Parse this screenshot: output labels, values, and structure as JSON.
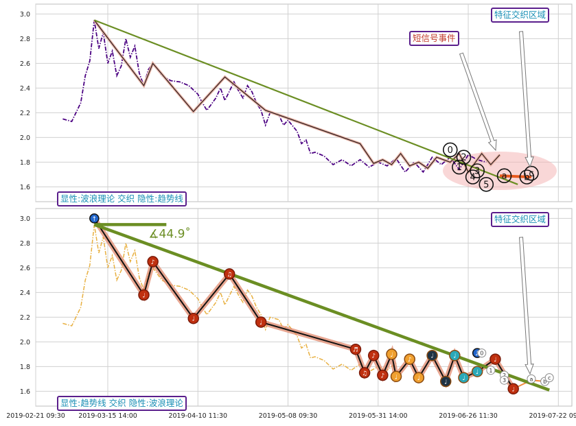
{
  "chart_data": [
    {
      "type": "line",
      "panel": "top",
      "ylim": [
        1.48,
        3.08
      ],
      "yticks": [
        "3.0",
        "2.8",
        "2.6",
        "2.4",
        "2.2",
        "2.0",
        "1.8",
        "1.6"
      ],
      "grid": true,
      "series": [
        {
          "style": "dash-dot",
          "color": "#4b0082",
          "values": [
            [
              0,
              2.15
            ],
            [
              2,
              2.13
            ],
            [
              4,
              2.28
            ],
            [
              5,
              2.5
            ],
            [
              6,
              2.62
            ],
            [
              7,
              2.95
            ],
            [
              8,
              2.72
            ],
            [
              9,
              2.85
            ],
            [
              10,
              2.6
            ],
            [
              11,
              2.7
            ],
            [
              12,
              2.5
            ],
            [
              13,
              2.58
            ],
            [
              14,
              2.8
            ],
            [
              15,
              2.65
            ],
            [
              16,
              2.74
            ],
            [
              17,
              2.52
            ],
            [
              18,
              2.42
            ],
            [
              19,
              2.55
            ],
            [
              20,
              2.6
            ],
            [
              22,
              2.5
            ],
            [
              24,
              2.46
            ],
            [
              26,
              2.45
            ],
            [
              28,
              2.42
            ],
            [
              30,
              2.35
            ],
            [
              31,
              2.28
            ],
            [
              32,
              2.22
            ],
            [
              34,
              2.32
            ],
            [
              35,
              2.4
            ],
            [
              36,
              2.3
            ],
            [
              38,
              2.45
            ],
            [
              39,
              2.38
            ],
            [
              40,
              2.32
            ],
            [
              41,
              2.42
            ],
            [
              42,
              2.37
            ],
            [
              43,
              2.28
            ],
            [
              44,
              2.22
            ],
            [
              45,
              2.1
            ],
            [
              46,
              2.2
            ],
            [
              48,
              2.18
            ],
            [
              49,
              2.1
            ],
            [
              50,
              2.14
            ],
            [
              52,
              2.05
            ],
            [
              53,
              1.95
            ],
            [
              54,
              1.98
            ],
            [
              55,
              1.87
            ],
            [
              56,
              1.88
            ],
            [
              58,
              1.85
            ],
            [
              60,
              1.78
            ],
            [
              62,
              1.82
            ],
            [
              64,
              1.77
            ],
            [
              66,
              1.82
            ],
            [
              68,
              1.76
            ],
            [
              70,
              1.8
            ],
            [
              72,
              1.77
            ],
            [
              74,
              1.83
            ],
            [
              76,
              1.72
            ],
            [
              78,
              1.8
            ],
            [
              80,
              1.72
            ],
            [
              82,
              1.84
            ],
            [
              84,
              1.78
            ],
            [
              86,
              1.84
            ],
            [
              88,
              1.74
            ],
            [
              90,
              1.86
            ],
            [
              92,
              1.82
            ],
            [
              94,
              1.8
            ]
          ]
        },
        {
          "style": "trend",
          "color": "#6b8e23",
          "values": [
            [
              7,
              2.95
            ],
            [
              101,
              1.62
            ]
          ]
        },
        {
          "style": "wave",
          "color": "#2b1b1b",
          "values": [
            [
              7,
              2.95
            ],
            [
              18,
              2.42
            ],
            [
              20,
              2.6
            ],
            [
              29,
              2.21
            ],
            [
              36,
              2.49
            ],
            [
              45,
              2.22
            ],
            [
              66,
              1.95
            ],
            [
              69,
              1.79
            ],
            [
              71,
              1.82
            ],
            [
              73,
              1.78
            ],
            [
              75,
              1.87
            ],
            [
              77,
              1.77
            ],
            [
              79,
              1.8
            ],
            [
              81,
              1.75
            ],
            [
              83,
              1.84
            ],
            [
              86,
              1.8
            ],
            [
              88,
              1.87
            ],
            [
              90,
              1.72
            ],
            [
              93,
              1.87
            ],
            [
              95,
              1.78
            ],
            [
              97,
              1.86
            ]
          ]
        }
      ],
      "points": [
        {
          "label": "0",
          "x": 86,
          "y": 1.9
        },
        {
          "label": "1",
          "x": 88,
          "y": 1.76
        },
        {
          "label": "2",
          "x": 89,
          "y": 1.84
        },
        {
          "label": "3",
          "x": 92,
          "y": 1.73
        },
        {
          "label": "4",
          "x": 91,
          "y": 1.68
        },
        {
          "label": "5",
          "x": 94,
          "y": 1.62
        },
        {
          "label": "a",
          "x": 98,
          "y": 1.69
        },
        {
          "label": "b",
          "x": 103,
          "y": 1.68
        },
        {
          "label": "c",
          "x": 104,
          "y": 1.71
        }
      ],
      "annotations": [
        {
          "text": "短信号事件",
          "color": "#c0392b"
        },
        {
          "text": "特征交织区域",
          "color": "#1a8fb5"
        }
      ],
      "legend_text": "显性:波浪理论 交织 隐性:趋势线"
    },
    {
      "type": "line",
      "panel": "bottom",
      "ylim": [
        1.48,
        3.08
      ],
      "yticks": [
        "3.0",
        "2.8",
        "2.6",
        "2.4",
        "2.2",
        "2.0",
        "1.8",
        "1.6"
      ],
      "grid": true,
      "xtick_labels": [
        "2019-02-21 09:30",
        "2019-03-15 14:00",
        "2019-04-10 11:30",
        "2019-05-08 09:30",
        "2019-05-31 14:00",
        "2019-06-26 11:30",
        "2019-07-22 09:30"
      ],
      "angle_label": "∡44.9˚",
      "annotations": [
        {
          "text": "特征交织区域",
          "color": "#1a8fb5"
        }
      ],
      "legend_text": "显性:趋势线 交织 隐性:波浪理论",
      "pivots": [
        {
          "x": 7,
          "y": 3.0,
          "label": "↑",
          "kind": "blue"
        },
        {
          "x": 18,
          "y": 2.38,
          "label": "♩",
          "kind": "red"
        },
        {
          "x": 20,
          "y": 2.65,
          "label": "♪",
          "kind": "red"
        },
        {
          "x": 29,
          "y": 2.19,
          "label": "♩",
          "kind": "red"
        },
        {
          "x": 37,
          "y": 2.55,
          "label": "♫",
          "kind": "red"
        },
        {
          "x": 44,
          "y": 2.16,
          "label": "♩",
          "kind": "red"
        },
        {
          "x": 65,
          "y": 1.94,
          "label": "♬",
          "kind": "red"
        },
        {
          "x": 67,
          "y": 1.75,
          "label": "♫",
          "kind": "red"
        },
        {
          "x": 69,
          "y": 1.89,
          "label": "♪",
          "kind": "red"
        },
        {
          "x": 71,
          "y": 1.73,
          "label": "♪",
          "kind": "red"
        },
        {
          "x": 73,
          "y": 1.9,
          "label": "♩",
          "kind": "orange"
        },
        {
          "x": 74,
          "y": 1.72,
          "label": "♩",
          "kind": "orange"
        },
        {
          "x": 77,
          "y": 1.86,
          "label": "♪",
          "kind": "orange"
        },
        {
          "x": 79,
          "y": 1.71,
          "label": "♩",
          "kind": "orange"
        },
        {
          "x": 82,
          "y": 1.89,
          "label": "♩",
          "kind": "dark"
        },
        {
          "x": 85,
          "y": 1.68,
          "label": "♩",
          "kind": "dark"
        },
        {
          "x": 87,
          "y": 1.89,
          "label": "♩",
          "kind": "teal"
        },
        {
          "x": 89,
          "y": 1.71,
          "label": "♩",
          "kind": "teal"
        },
        {
          "x": 92,
          "y": 1.91,
          "label": "♪",
          "kind": "blue"
        },
        {
          "x": 92,
          "y": 1.76,
          "label": "♩",
          "kind": "teal"
        },
        {
          "x": 96,
          "y": 1.86,
          "label": "♩",
          "kind": "red"
        },
        {
          "x": 100,
          "y": 1.62,
          "label": "♩",
          "kind": "red"
        }
      ],
      "small_labels": [
        {
          "text": "0",
          "x": 93,
          "y": 1.91
        },
        {
          "text": "1",
          "x": 95,
          "y": 1.77
        },
        {
          "text": "2",
          "x": 98,
          "y": 1.73
        },
        {
          "text": "3",
          "x": 98,
          "y": 1.69
        },
        {
          "text": "a",
          "x": 104,
          "y": 1.7
        },
        {
          "text": "b",
          "x": 107,
          "y": 1.68
        },
        {
          "text": "c",
          "x": 108,
          "y": 1.71
        }
      ]
    }
  ]
}
